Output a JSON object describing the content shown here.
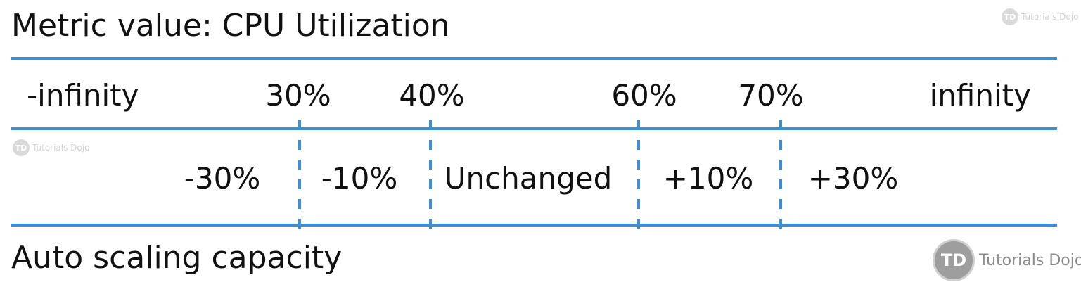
{
  "title": "Metric value: CPU Utilization",
  "footer_label": "Auto scaling capacity",
  "thresholds": [
    "-infinity",
    "30%",
    "40%",
    "60%",
    "70%",
    "infinity"
  ],
  "adjustments": [
    "-30%",
    "-10%",
    "Unchanged",
    "+10%",
    "+30%"
  ],
  "watermark": {
    "badge": "TD",
    "brand": "Tutorials Dojo"
  },
  "colors": {
    "line": "#3a8fd6",
    "text": "#111111"
  }
}
